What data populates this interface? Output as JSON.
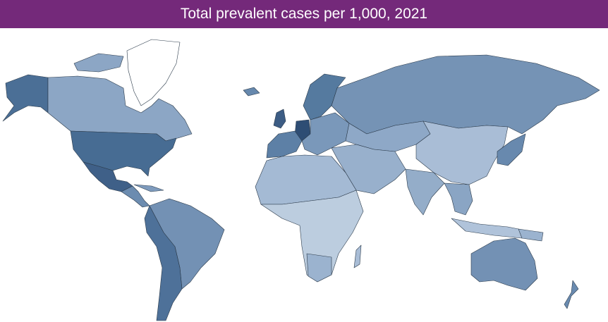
{
  "header": {
    "title": "Total prevalent cases per 1,000, 2021"
  }
}
